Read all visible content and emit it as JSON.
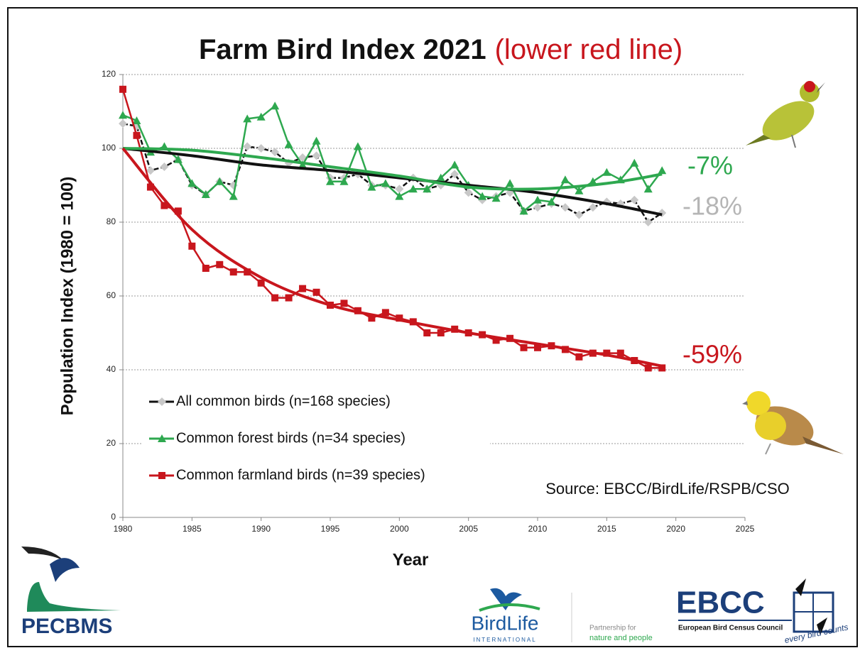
{
  "chart_data": {
    "type": "line",
    "title": "Farm Bird Index 2021",
    "subtitle": "(lower red line)",
    "x_label": "Year",
    "y_label": "Population Index (1980 = 100)",
    "xlim": [
      1980,
      2025
    ],
    "xticks": [
      1980,
      1985,
      1990,
      1995,
      2000,
      2005,
      2010,
      2015,
      2020,
      2025
    ],
    "ylim": [
      0,
      120
    ],
    "yticks": [
      0,
      20,
      40,
      60,
      80,
      100,
      120
    ],
    "grid": true,
    "legend": "lower left",
    "x": [
      1980,
      1981,
      1982,
      1983,
      1984,
      1985,
      1986,
      1987,
      1988,
      1989,
      1990,
      1991,
      1992,
      1993,
      1994,
      1995,
      1996,
      1997,
      1998,
      1999,
      2000,
      2001,
      2002,
      2003,
      2004,
      2005,
      2006,
      2007,
      2008,
      2009,
      2010,
      2011,
      2012,
      2013,
      2014,
      2015,
      2016,
      2017,
      2018,
      2019
    ],
    "series": [
      {
        "name": "All common birds (n=168 species)",
        "color": "#111111",
        "marker_color": "#c8c8c8",
        "marker": "diamond",
        "dashed": true,
        "values": [
          106.7,
          106,
          94,
          95,
          97,
          90,
          87.5,
          91,
          90,
          100.5,
          100,
          99,
          96,
          97.5,
          98,
          92,
          92,
          93,
          90,
          90,
          89,
          92,
          89,
          90,
          93,
          88,
          86,
          87,
          88,
          83,
          84,
          85,
          84,
          82,
          84,
          85.5,
          85,
          86,
          80,
          82.5
        ]
      },
      {
        "name": "Common forest birds (n=34 species)",
        "color": "#2ea84f",
        "marker_color": "#2ea84f",
        "marker": "triangle",
        "dashed": false,
        "values": [
          109,
          107.5,
          99,
          100.5,
          97,
          90.5,
          87.5,
          91,
          87,
          108,
          108.5,
          111.5,
          101,
          95.5,
          102,
          91,
          91,
          100.5,
          89.5,
          90.5,
          87,
          89,
          89,
          92,
          95.5,
          90,
          87,
          86.5,
          90.5,
          83,
          86,
          85.5,
          91.5,
          88.5,
          91,
          93.5,
          91.5,
          96,
          89,
          94
        ]
      },
      {
        "name": "Common farmland birds (n=39 species)",
        "color": "#c8161d",
        "marker_color": "#c8161d",
        "marker": "square",
        "dashed": false,
        "values": [
          116,
          103.5,
          89.5,
          84.5,
          83,
          73.5,
          67.5,
          68.5,
          66.5,
          66.5,
          63.5,
          59.5,
          59.5,
          62,
          61,
          57.5,
          58,
          56,
          54,
          55.5,
          54,
          53,
          50,
          50,
          51,
          50,
          49.5,
          48,
          48.5,
          46,
          46,
          46.5,
          45.5,
          43.5,
          44.5,
          44.5,
          44.5,
          42.5,
          40.5,
          40.5
        ]
      }
    ],
    "trend_lines": {
      "x": [
        1980,
        1985,
        1990,
        1995,
        2000,
        2005,
        2010,
        2015,
        2019
      ],
      "lines": [
        {
          "color": "#111111",
          "values": [
            100,
            98,
            95.5,
            94,
            92,
            90,
            88,
            85,
            82
          ]
        },
        {
          "color": "#2ea84f",
          "values": [
            100,
            99.5,
            97.5,
            95,
            92.5,
            89.5,
            89,
            90.5,
            93
          ]
        },
        {
          "color": "#c8161d",
          "values": [
            100,
            78,
            65,
            57.5,
            53.5,
            50,
            47,
            44,
            41
          ]
        }
      ]
    },
    "annotations": [
      {
        "text": "-7%",
        "color": "#2ea84f"
      },
      {
        "text": "-18%",
        "color": "#b5b5b5"
      },
      {
        "text": "-59%",
        "color": "#c8161d"
      }
    ],
    "source": "Source: EBCC/BirdLife/RSPB/CSO"
  },
  "logos": {
    "pecbms": "PECBMS",
    "birdlife": "BirdLife",
    "birdlife_sub": "INTERNATIONAL",
    "partnership_1": "Partnership for",
    "partnership_2": "nature and people",
    "ebcc": "EBCC",
    "ebcc_sub": "European Bird Census Council",
    "ebcc_tag": "every bird counts"
  }
}
